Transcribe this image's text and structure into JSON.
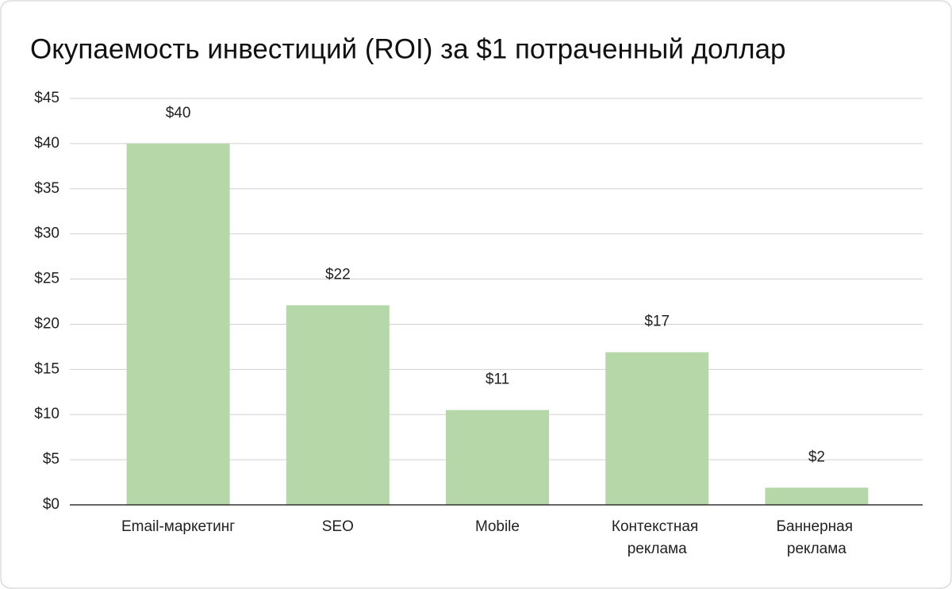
{
  "chart_data": {
    "type": "bar",
    "title": "Окупаемость инвестиций (ROI) за $1 потраченный доллар",
    "categories": [
      "Email-маркетинг",
      "SEO",
      "Mobile",
      "Контекстная реклама",
      "Баннерная реклама"
    ],
    "values": [
      40,
      22.1,
      10.5,
      16.9,
      1.9
    ],
    "value_labels": [
      "$40",
      "$22",
      "$11",
      "$17",
      "$2"
    ],
    "color": "#b6d7a8",
    "ylim": [
      0,
      45
    ],
    "yticks": [
      {
        "value": 0,
        "label": "$0"
      },
      {
        "value": 5,
        "label": "$5"
      },
      {
        "value": 10,
        "label": "$10"
      },
      {
        "value": 15,
        "label": "$15"
      },
      {
        "value": 20,
        "label": "$20"
      },
      {
        "value": 25,
        "label": "$25"
      },
      {
        "value": 30,
        "label": "$30"
      },
      {
        "value": 35,
        "label": "$35"
      },
      {
        "value": 40,
        "label": "$40"
      },
      {
        "value": 45,
        "label": "$45"
      }
    ],
    "grid": true
  }
}
